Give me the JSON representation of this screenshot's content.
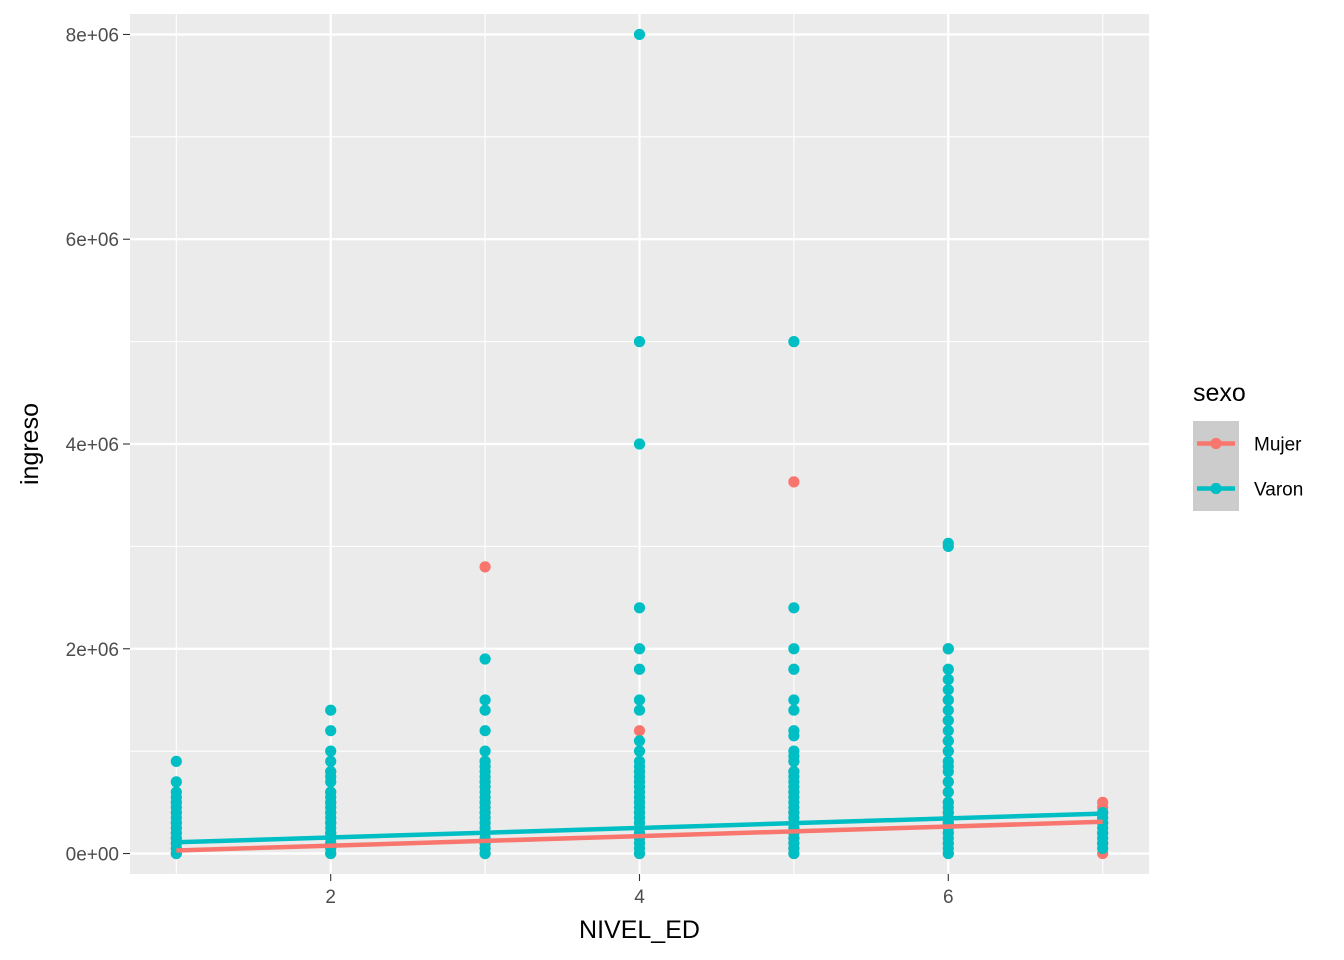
{
  "chart_data": {
    "type": "scatter",
    "xlabel": "NIVEL_ED",
    "ylabel": "ingreso",
    "xlim": [
      0.7,
      7.3
    ],
    "ylim": [
      -200000,
      8200000
    ],
    "x_major_ticks": [
      2,
      4,
      6
    ],
    "x_tick_labels": [
      "2",
      "4",
      "6"
    ],
    "x_minor_ticks": [
      1,
      3,
      5,
      7
    ],
    "y_major_ticks": [
      0,
      2000000,
      4000000,
      6000000,
      8000000
    ],
    "y_tick_labels": [
      "0e+00",
      "2e+06",
      "4e+06",
      "6e+06",
      "8e+06"
    ],
    "y_minor_ticks": [
      1000000,
      3000000,
      5000000,
      7000000
    ],
    "grid": true,
    "legend": {
      "title": "sexo",
      "placement": "right",
      "entries": [
        "Mujer",
        "Varon"
      ]
    },
    "series": [
      {
        "name": "Mujer",
        "color": "#F8766D",
        "trend_line": [
          [
            1,
            30000
          ],
          [
            7,
            310000
          ]
        ],
        "points": [
          [
            1,
            0
          ],
          [
            1,
            50000
          ],
          [
            1,
            100000
          ],
          [
            1,
            150000
          ],
          [
            1,
            200000
          ],
          [
            1,
            250000
          ],
          [
            1,
            300000
          ],
          [
            1,
            400000
          ],
          [
            1,
            500000
          ],
          [
            2,
            0
          ],
          [
            2,
            100000
          ],
          [
            2,
            200000
          ],
          [
            2,
            300000
          ],
          [
            2,
            400000
          ],
          [
            2,
            500000
          ],
          [
            2,
            600000
          ],
          [
            2,
            800000
          ],
          [
            3,
            0
          ],
          [
            3,
            100000
          ],
          [
            3,
            200000
          ],
          [
            3,
            300000
          ],
          [
            3,
            400000
          ],
          [
            3,
            500000
          ],
          [
            3,
            700000
          ],
          [
            3,
            900000
          ],
          [
            3,
            2800000
          ],
          [
            4,
            0
          ],
          [
            4,
            100000
          ],
          [
            4,
            200000
          ],
          [
            4,
            300000
          ],
          [
            4,
            400000
          ],
          [
            4,
            500000
          ],
          [
            4,
            700000
          ],
          [
            4,
            800000
          ],
          [
            4,
            1200000
          ],
          [
            5,
            0
          ],
          [
            5,
            50000
          ],
          [
            5,
            100000
          ],
          [
            5,
            150000
          ],
          [
            5,
            200000
          ],
          [
            5,
            300000
          ],
          [
            5,
            400000
          ],
          [
            5,
            600000
          ],
          [
            5,
            800000
          ],
          [
            5,
            900000
          ],
          [
            5,
            3630000
          ],
          [
            6,
            0
          ],
          [
            6,
            100000
          ],
          [
            6,
            200000
          ],
          [
            6,
            300000
          ],
          [
            6,
            400000
          ],
          [
            6,
            500000
          ],
          [
            6,
            600000
          ],
          [
            6,
            700000
          ],
          [
            6,
            1000000
          ],
          [
            6,
            1100000
          ],
          [
            6,
            1300000
          ],
          [
            6,
            1500000
          ],
          [
            6,
            2000000
          ],
          [
            7,
            0
          ],
          [
            7,
            100000
          ],
          [
            7,
            200000
          ],
          [
            7,
            300000
          ],
          [
            7,
            400000
          ],
          [
            7,
            450000
          ],
          [
            7,
            500000
          ]
        ]
      },
      {
        "name": "Varon",
        "color": "#00BFC4",
        "trend_line": [
          [
            1,
            110000
          ],
          [
            7,
            390000
          ]
        ],
        "points": [
          [
            1,
            0
          ],
          [
            1,
            50000
          ],
          [
            1,
            100000
          ],
          [
            1,
            150000
          ],
          [
            1,
            200000
          ],
          [
            1,
            250000
          ],
          [
            1,
            300000
          ],
          [
            1,
            350000
          ],
          [
            1,
            400000
          ],
          [
            1,
            450000
          ],
          [
            1,
            500000
          ],
          [
            1,
            550000
          ],
          [
            1,
            600000
          ],
          [
            1,
            700000
          ],
          [
            1,
            900000
          ],
          [
            2,
            0
          ],
          [
            2,
            50000
          ],
          [
            2,
            100000
          ],
          [
            2,
            150000
          ],
          [
            2,
            200000
          ],
          [
            2,
            250000
          ],
          [
            2,
            300000
          ],
          [
            2,
            350000
          ],
          [
            2,
            400000
          ],
          [
            2,
            450000
          ],
          [
            2,
            500000
          ],
          [
            2,
            550000
          ],
          [
            2,
            600000
          ],
          [
            2,
            700000
          ],
          [
            2,
            750000
          ],
          [
            2,
            800000
          ],
          [
            2,
            900000
          ],
          [
            2,
            1000000
          ],
          [
            2,
            1200000
          ],
          [
            2,
            1400000
          ],
          [
            3,
            0
          ],
          [
            3,
            50000
          ],
          [
            3,
            100000
          ],
          [
            3,
            150000
          ],
          [
            3,
            200000
          ],
          [
            3,
            250000
          ],
          [
            3,
            300000
          ],
          [
            3,
            350000
          ],
          [
            3,
            400000
          ],
          [
            3,
            450000
          ],
          [
            3,
            500000
          ],
          [
            3,
            550000
          ],
          [
            3,
            600000
          ],
          [
            3,
            650000
          ],
          [
            3,
            700000
          ],
          [
            3,
            750000
          ],
          [
            3,
            800000
          ],
          [
            3,
            850000
          ],
          [
            3,
            900000
          ],
          [
            3,
            1000000
          ],
          [
            3,
            1200000
          ],
          [
            3,
            1400000
          ],
          [
            3,
            1500000
          ],
          [
            3,
            1900000
          ],
          [
            4,
            0
          ],
          [
            4,
            50000
          ],
          [
            4,
            100000
          ],
          [
            4,
            150000
          ],
          [
            4,
            200000
          ],
          [
            4,
            250000
          ],
          [
            4,
            300000
          ],
          [
            4,
            350000
          ],
          [
            4,
            400000
          ],
          [
            4,
            450000
          ],
          [
            4,
            500000
          ],
          [
            4,
            550000
          ],
          [
            4,
            600000
          ],
          [
            4,
            650000
          ],
          [
            4,
            700000
          ],
          [
            4,
            750000
          ],
          [
            4,
            800000
          ],
          [
            4,
            850000
          ],
          [
            4,
            900000
          ],
          [
            4,
            1000000
          ],
          [
            4,
            1100000
          ],
          [
            4,
            1400000
          ],
          [
            4,
            1500000
          ],
          [
            4,
            1800000
          ],
          [
            4,
            2000000
          ],
          [
            4,
            2400000
          ],
          [
            4,
            4000000
          ],
          [
            4,
            5000000
          ],
          [
            4,
            8000000
          ],
          [
            5,
            0
          ],
          [
            5,
            50000
          ],
          [
            5,
            100000
          ],
          [
            5,
            150000
          ],
          [
            5,
            200000
          ],
          [
            5,
            250000
          ],
          [
            5,
            300000
          ],
          [
            5,
            350000
          ],
          [
            5,
            400000
          ],
          [
            5,
            450000
          ],
          [
            5,
            500000
          ],
          [
            5,
            550000
          ],
          [
            5,
            600000
          ],
          [
            5,
            650000
          ],
          [
            5,
            700000
          ],
          [
            5,
            750000
          ],
          [
            5,
            800000
          ],
          [
            5,
            900000
          ],
          [
            5,
            950000
          ],
          [
            5,
            1000000
          ],
          [
            5,
            1150000
          ],
          [
            5,
            1200000
          ],
          [
            5,
            1400000
          ],
          [
            5,
            1500000
          ],
          [
            5,
            1800000
          ],
          [
            5,
            2000000
          ],
          [
            5,
            2400000
          ],
          [
            5,
            5000000
          ],
          [
            6,
            0
          ],
          [
            6,
            50000
          ],
          [
            6,
            100000
          ],
          [
            6,
            150000
          ],
          [
            6,
            200000
          ],
          [
            6,
            250000
          ],
          [
            6,
            300000
          ],
          [
            6,
            350000
          ],
          [
            6,
            400000
          ],
          [
            6,
            450000
          ],
          [
            6,
            500000
          ],
          [
            6,
            600000
          ],
          [
            6,
            700000
          ],
          [
            6,
            800000
          ],
          [
            6,
            850000
          ],
          [
            6,
            900000
          ],
          [
            6,
            1000000
          ],
          [
            6,
            1100000
          ],
          [
            6,
            1200000
          ],
          [
            6,
            1300000
          ],
          [
            6,
            1400000
          ],
          [
            6,
            1500000
          ],
          [
            6,
            1600000
          ],
          [
            6,
            1700000
          ],
          [
            6,
            1800000
          ],
          [
            6,
            2000000
          ],
          [
            6,
            3000000
          ],
          [
            6,
            3030000
          ],
          [
            7,
            50000
          ],
          [
            7,
            100000
          ],
          [
            7,
            150000
          ],
          [
            7,
            200000
          ],
          [
            7,
            250000
          ],
          [
            7,
            300000
          ],
          [
            7,
            350000
          ],
          [
            7,
            400000
          ]
        ]
      }
    ]
  }
}
